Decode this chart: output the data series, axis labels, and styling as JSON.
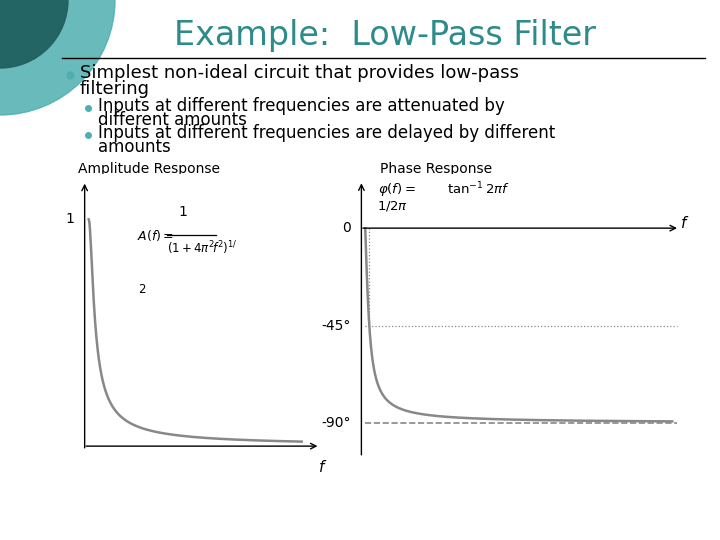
{
  "title": "Example:  Low-Pass Filter",
  "title_color": "#2E8B8B",
  "bg_color": "#FFFFFF",
  "bullet1_line1": "Simplest non-ideal circuit that provides low-pass",
  "bullet1_line2": "filtering",
  "sub1_line1": "Inputs at different frequencies are attenuated by",
  "sub1_line2": "different amounts",
  "sub2_line1": "Inputs at different frequencies are delayed by different",
  "sub2_line2": "amounts",
  "amp_label": "Amplitude Response",
  "phase_label": "Phase Response",
  "curve_color": "#888888",
  "dotted_color": "#888888",
  "dashed_color": "#888888",
  "circle_color": "#4FAFAF",
  "dark_circle": "#1F6060",
  "title_fs": 24,
  "body_fs": 13,
  "sub_fs": 12,
  "small_label_fs": 10
}
